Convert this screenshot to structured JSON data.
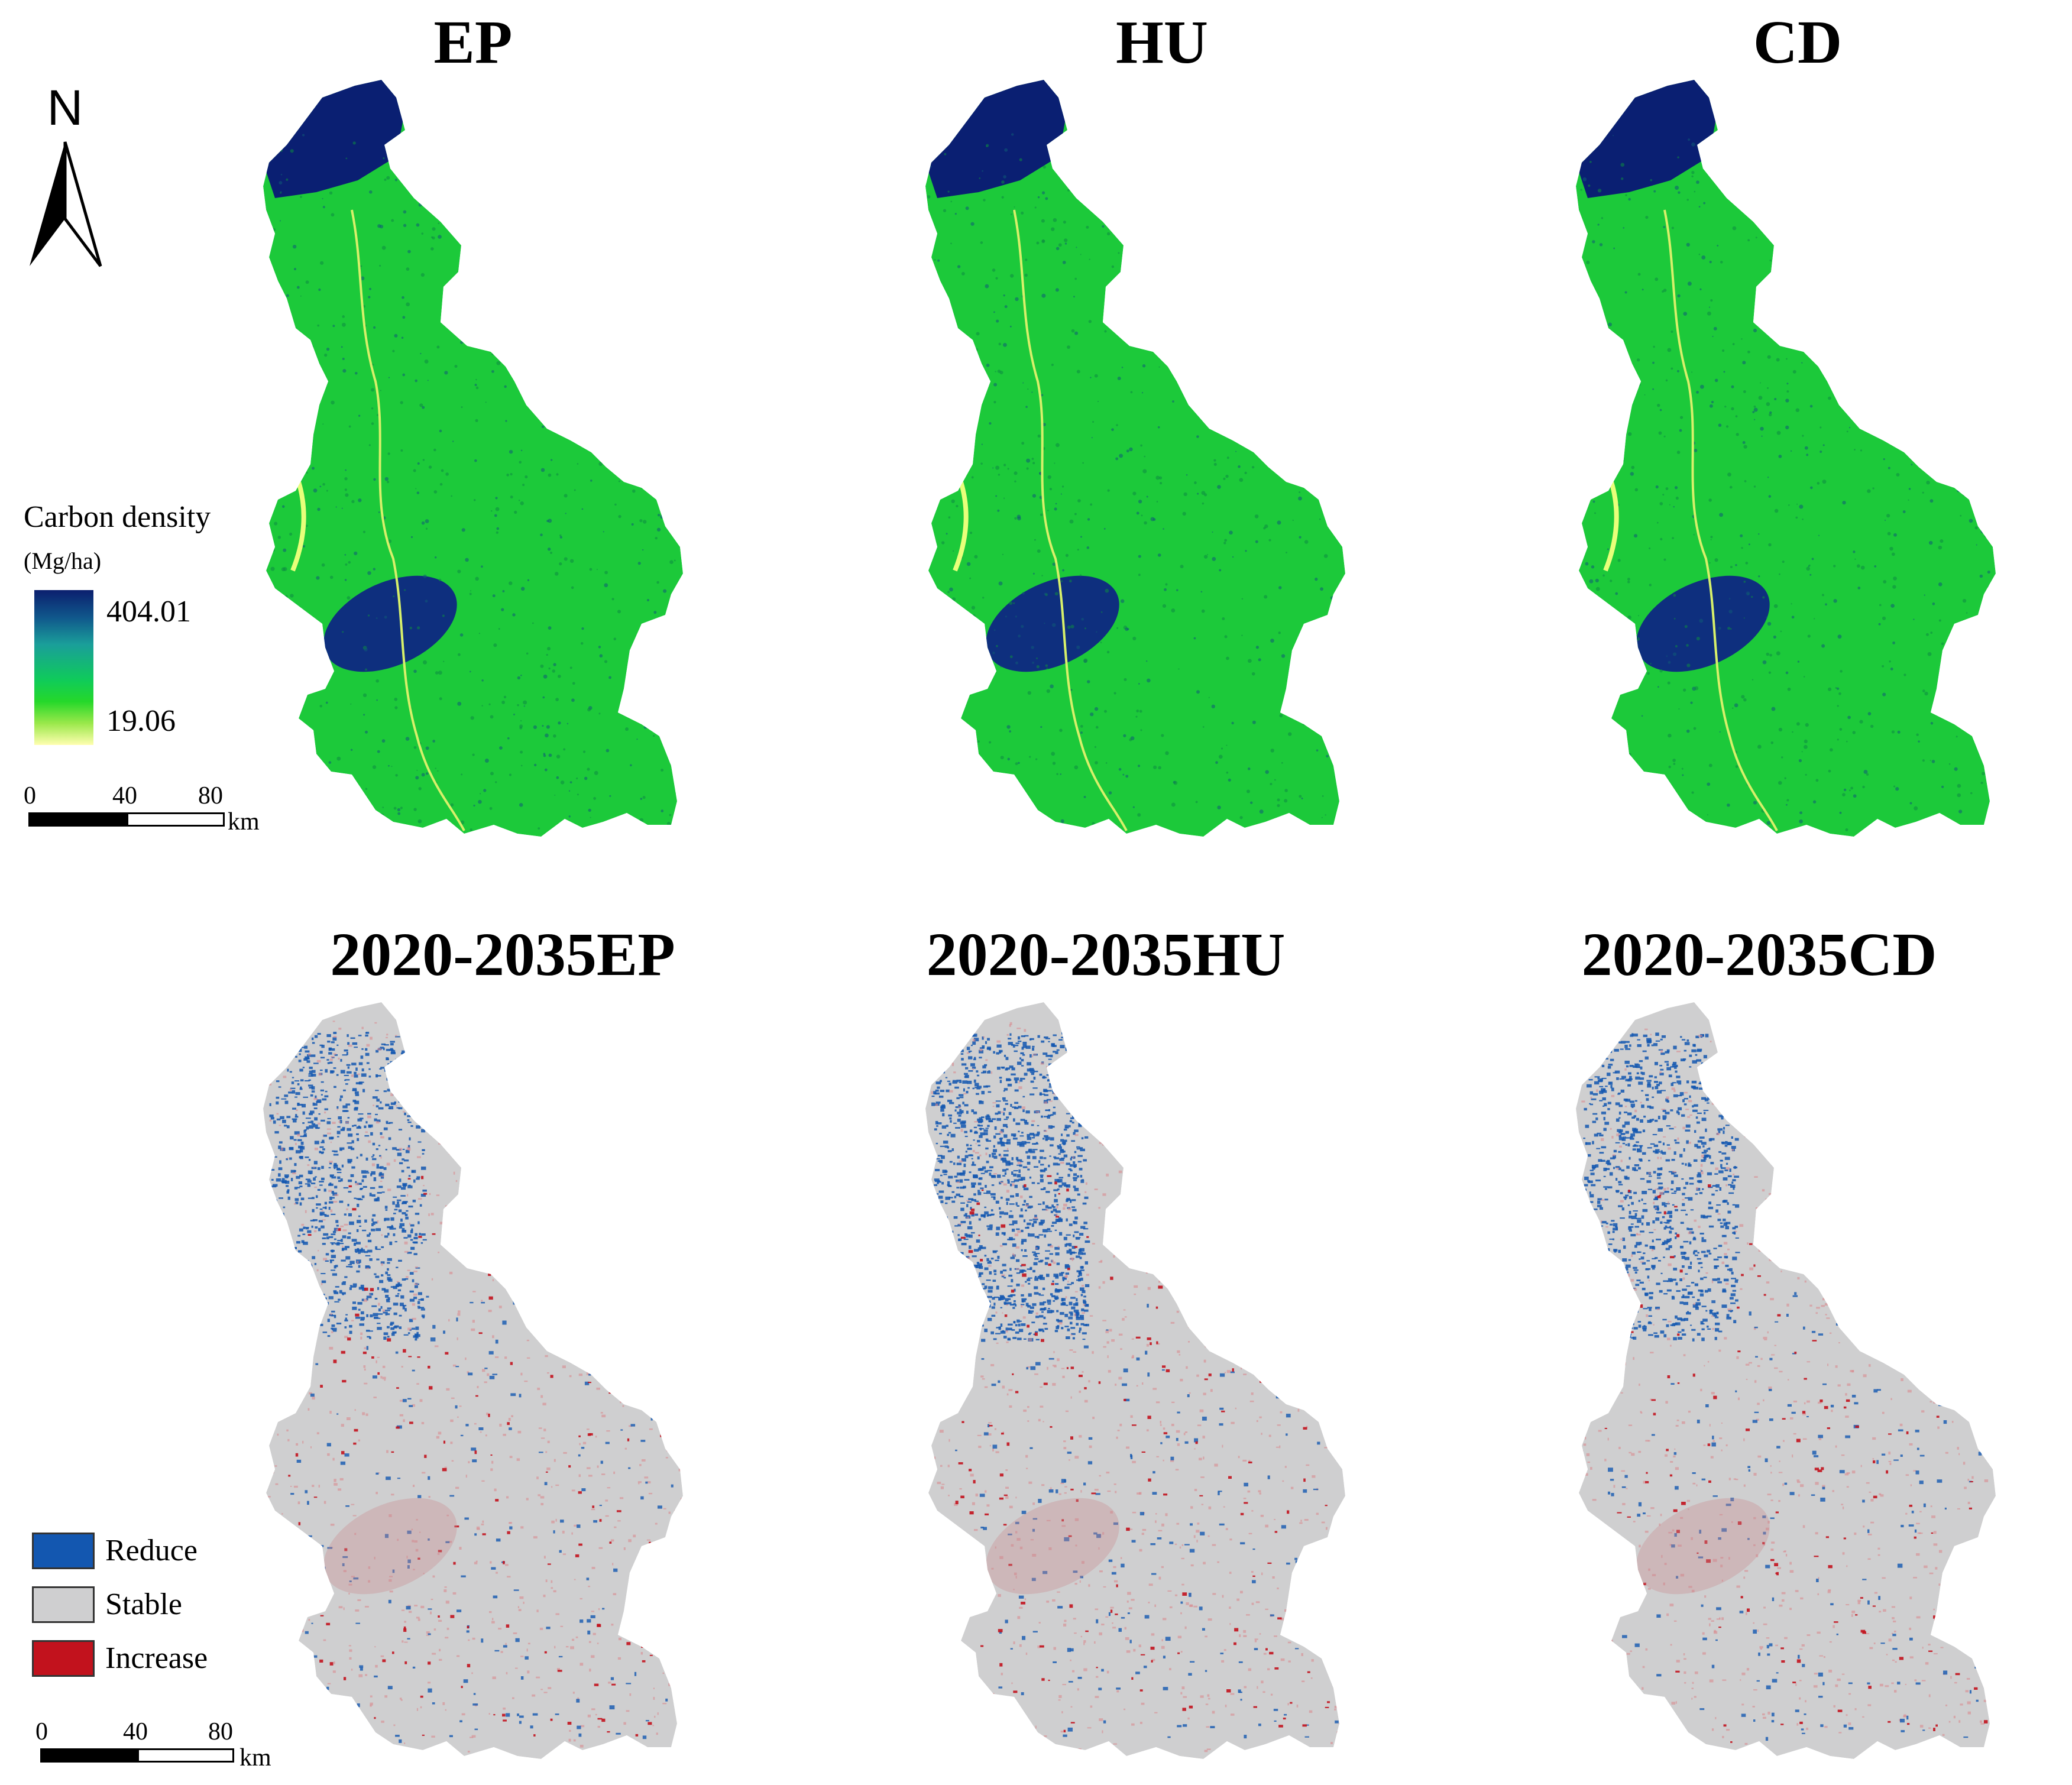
{
  "maps": {
    "top": [
      {
        "title": "EP"
      },
      {
        "title": "HU"
      },
      {
        "title": "CD"
      }
    ],
    "bottom": [
      {
        "title": "2020-2035EP"
      },
      {
        "title": "2020-2035HU"
      },
      {
        "title": "2020-2035CD"
      }
    ]
  },
  "north_arrow": {
    "label": "N"
  },
  "density_legend": {
    "title": "Carbon density",
    "unit": "(Mg/ha)",
    "max_label": "404.01",
    "min_label": "19.06",
    "colors": {
      "high": "#0b1f6e",
      "mid": "#0fcb5a",
      "low": "#fffeb0"
    }
  },
  "change_legend": {
    "items": [
      {
        "label": "Reduce",
        "color": "#1357b0"
      },
      {
        "label": "Stable",
        "color": "#cfcfd0"
      },
      {
        "label": "Increase",
        "color": "#c2121d"
      }
    ]
  },
  "scale_bar": {
    "ticks": [
      "0",
      "40",
      "80"
    ],
    "unit": "km"
  }
}
